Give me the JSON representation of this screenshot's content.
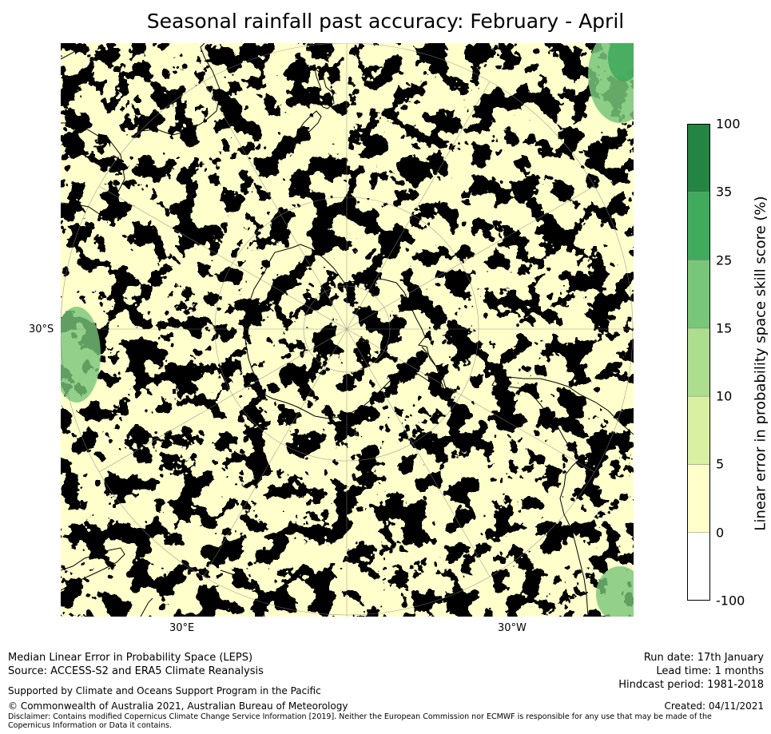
{
  "title": "Seasonal rainfall past accuracy: February - April",
  "map": {
    "projection": "south-polar-stereographic",
    "labels": {
      "left_lat": "30°S",
      "bottom_left_lon": "30°E",
      "bottom_right_lon": "30°W"
    },
    "colors": {
      "ocean_light": "#ffffcc",
      "land_outline": "#000000",
      "graticule": "#888888"
    }
  },
  "colorbar": {
    "label": "Linear error in probability space skill score (%)",
    "ticks": [
      "-100",
      "0",
      "5",
      "10",
      "15",
      "25",
      "35",
      "100"
    ],
    "bins": [
      {
        "from": "-100",
        "to": "0",
        "color": "#ffffff"
      },
      {
        "from": "0",
        "to": "5",
        "color": "#ffffcc"
      },
      {
        "from": "5",
        "to": "10",
        "color": "#d9f0a3"
      },
      {
        "from": "10",
        "to": "15",
        "color": "#addd8e"
      },
      {
        "from": "15",
        "to": "25",
        "color": "#78c679"
      },
      {
        "from": "25",
        "to": "35",
        "color": "#41ab5d"
      },
      {
        "from": "35",
        "to": "100",
        "color": "#238443"
      }
    ]
  },
  "footer": {
    "line1": "Median Linear Error in Probability Space (LEPS)",
    "line2": "Source: ACCESS-S2 and ERA5 Climate Reanalysis",
    "support": "Supported by Climate and Oceans Support Program in the Pacific",
    "copyright": "© Commonwealth of Australia 2021, Australian Bureau of Meteorology",
    "disclaimer": "Disclaimer: Contains modified Copernicus Climate Change Service Information [2019]. Neither the European Commission nor ECMWF is responsible for any use that may be made of the Copernicus Information or Data it contains.",
    "run_date": "Run date: 17th January",
    "lead_time": "Lead time: 1 months",
    "hindcast": "Hindcast period: 1981-2018",
    "created": "Created: 04/11/2021"
  }
}
